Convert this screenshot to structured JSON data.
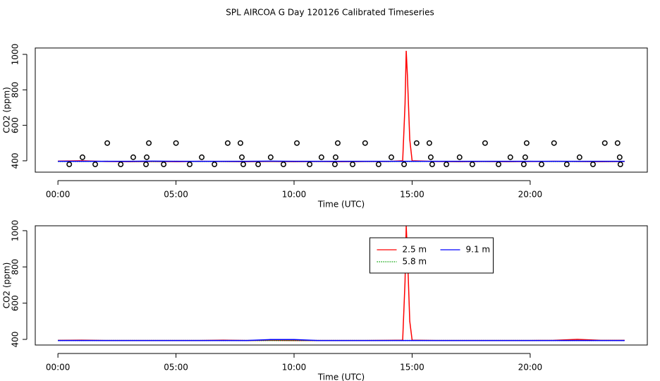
{
  "title": "SPL AIRCOA G  Day 120126  Calibrated Timeseries",
  "chart_data": [
    {
      "type": "line",
      "xlabel": "Time (UTC)",
      "ylabel": "CO2 (ppm)",
      "xlim": [
        -0.96,
        24.96
      ],
      "ylim": [
        336,
        1036
      ],
      "xticks": [
        {
          "value": 0,
          "label": "00:00"
        },
        {
          "value": 5,
          "label": "05:00"
        },
        {
          "value": 10,
          "label": "10:00"
        },
        {
          "value": 15,
          "label": "15:00"
        },
        {
          "value": 20,
          "label": "20:00"
        }
      ],
      "yticks": [
        400,
        600,
        800,
        1000
      ],
      "x": [
        0,
        1,
        2,
        3,
        4,
        5,
        6,
        7,
        8,
        9,
        10,
        11,
        12,
        13,
        14,
        14.6,
        14.7,
        14.75,
        14.8,
        14.9,
        15,
        16,
        17,
        18,
        19,
        20,
        21,
        22,
        23,
        24
      ],
      "series": [
        {
          "name": "2.5 m",
          "color": "#ff0000",
          "line_style": "solid",
          "values": [
            398,
            400,
            396,
            395,
            396,
            395,
            397,
            396,
            395,
            396,
            395,
            396,
            395,
            396,
            396,
            400,
            720,
            1020,
            880,
            520,
            400,
            396,
            395,
            396,
            395,
            396,
            397,
            396,
            395,
            396
          ]
        },
        {
          "name": "5.8 m",
          "color": "#00a000",
          "line_style": "dotted",
          "values": [
            396,
            396,
            397,
            396,
            396,
            397,
            396,
            396,
            396,
            397,
            396,
            396,
            396,
            396,
            396,
            396,
            396,
            396,
            396,
            396,
            396,
            397,
            396,
            396,
            396,
            397,
            396,
            396,
            396,
            396
          ]
        },
        {
          "name": "9.1 m",
          "color": "#0000ff",
          "line_style": "solid",
          "values": [
            397,
            397,
            397,
            397,
            398,
            397,
            397,
            397,
            397,
            398,
            397,
            397,
            397,
            397,
            397,
            397,
            397,
            397,
            397,
            397,
            397,
            397,
            397,
            397,
            397,
            397,
            397,
            397,
            397,
            397
          ]
        }
      ],
      "points": {
        "color": "#000000",
        "x": [
          2.09,
          3.85,
          5.0,
          7.19,
          7.73,
          10.12,
          11.85,
          13.01,
          15.19,
          15.73,
          18.09,
          19.85,
          21.01,
          23.16,
          23.7,
          1.04,
          3.19,
          3.76,
          6.09,
          7.79,
          9.01,
          11.16,
          11.76,
          14.12,
          15.79,
          17.01,
          19.16,
          19.79,
          22.09,
          23.79,
          0.48,
          1.58,
          2.66,
          3.73,
          4.48,
          5.58,
          6.63,
          7.85,
          8.48,
          9.55,
          10.66,
          11.73,
          12.48,
          13.58,
          14.66,
          15.85,
          16.45,
          17.55,
          18.66,
          19.73,
          20.48,
          21.55,
          22.66,
          23.82
        ],
        "values": [
          500,
          500,
          500,
          500,
          500,
          500,
          500,
          500,
          500,
          500,
          500,
          500,
          500,
          500,
          500,
          420,
          420,
          420,
          420,
          420,
          420,
          420,
          420,
          420,
          420,
          420,
          420,
          420,
          420,
          420,
          380,
          380,
          380,
          380,
          380,
          380,
          380,
          380,
          380,
          380,
          380,
          380,
          380,
          380,
          380,
          380,
          380,
          380,
          380,
          380,
          380,
          380,
          380,
          380
        ]
      }
    },
    {
      "type": "line",
      "xlabel": "Time (UTC)",
      "ylabel": "CO2 (ppm)",
      "xlim": [
        -0.96,
        24.96
      ],
      "ylim": [
        369,
        1027
      ],
      "xticks": [
        {
          "value": 0,
          "label": "00:00"
        },
        {
          "value": 5,
          "label": "05:00"
        },
        {
          "value": 10,
          "label": "10:00"
        },
        {
          "value": 15,
          "label": "15:00"
        },
        {
          "value": 20,
          "label": "20:00"
        }
      ],
      "yticks": [
        400,
        600,
        800,
        1000
      ],
      "legend": "top-center",
      "x": [
        0,
        1,
        2,
        3,
        4,
        5,
        6,
        7,
        8,
        9,
        10,
        11,
        12,
        13,
        14,
        14.6,
        14.7,
        14.75,
        14.8,
        14.9,
        15,
        16,
        17,
        18,
        19,
        20,
        21,
        22,
        23,
        24
      ],
      "series": [
        {
          "name": "2.5 m",
          "color": "#ff0000",
          "line_style": "solid",
          "values": [
            395,
            396,
            394,
            394,
            394,
            394,
            394,
            396,
            394,
            395,
            394,
            394,
            394,
            394,
            395,
            396,
            720,
            1025,
            880,
            500,
            396,
            394,
            394,
            394,
            394,
            394,
            395,
            400,
            395,
            395
          ]
        },
        {
          "name": "5.8 m",
          "color": "#00a000",
          "line_style": "dotted",
          "values": [
            394,
            394,
            394,
            394,
            394,
            394,
            394,
            394,
            394,
            394,
            394,
            394,
            394,
            394,
            394,
            394,
            394,
            394,
            394,
            394,
            394,
            394,
            394,
            394,
            394,
            394,
            394,
            394,
            394,
            394
          ]
        },
        {
          "name": "9.1 m",
          "color": "#0000ff",
          "line_style": "solid",
          "values": [
            394,
            394,
            394,
            394,
            394,
            394,
            394,
            394,
            394,
            399,
            399,
            394,
            394,
            394,
            394,
            394,
            394,
            394,
            394,
            394,
            394,
            394,
            394,
            394,
            394,
            394,
            394,
            394,
            394,
            394
          ]
        }
      ]
    }
  ]
}
